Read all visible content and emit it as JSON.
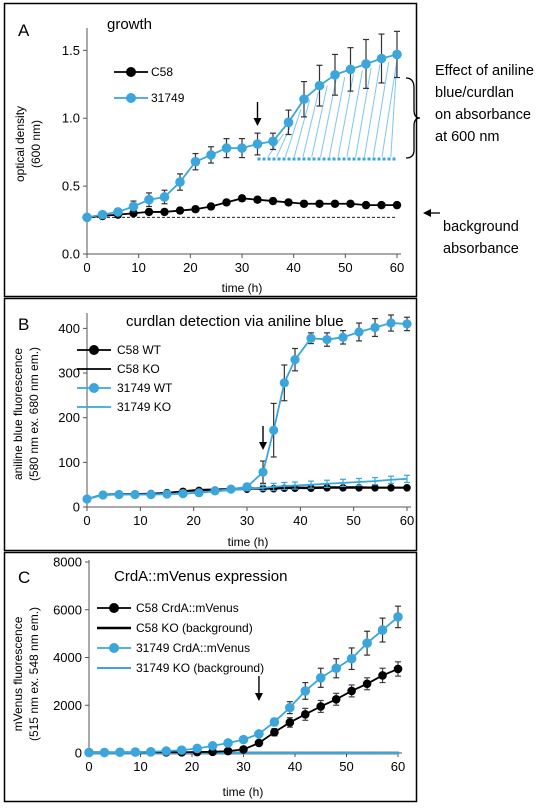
{
  "colors": {
    "c58": "#000000",
    "strain31749": "#3aa6dc",
    "hatch": "#7fc6ec",
    "frame": "#000000"
  },
  "chart_data": [
    {
      "type": "line",
      "panel_label": "A",
      "title": "growth",
      "xlabel": "time (h)",
      "ylabel": "optical density",
      "ylabel_sub": "(600 nm)",
      "xlim": [
        0,
        60
      ],
      "ylim": [
        0,
        1.65
      ],
      "x_ticks": [
        "0",
        "10",
        "20",
        "30",
        "40",
        "50",
        "60"
      ],
      "y_ticks": [
        "0.0",
        "0.5",
        "1.0",
        "1.5"
      ],
      "y_tick_values": [
        0,
        0.5,
        1.0,
        1.5
      ],
      "x": [
        0,
        3,
        6,
        9,
        12,
        15,
        18,
        21,
        24,
        27,
        30,
        33,
        36,
        39,
        42,
        45,
        48,
        51,
        54,
        57,
        60
      ],
      "series": [
        {
          "name": "C58",
          "values": [
            0.27,
            0.28,
            0.29,
            0.3,
            0.31,
            0.31,
            0.32,
            0.33,
            0.35,
            0.38,
            0.41,
            0.4,
            0.39,
            0.38,
            0.37,
            0.37,
            0.37,
            0.37,
            0.36,
            0.36,
            0.36
          ],
          "errors": [
            0.01,
            0.01,
            0.01,
            0.01,
            0.02,
            0.02,
            0.02,
            0.02,
            0.02,
            0.02,
            0.02,
            0.02,
            0.02,
            0.02,
            0.02,
            0.01,
            0.01,
            0.01,
            0.01,
            0.01,
            0.01
          ]
        },
        {
          "name": "31749",
          "values": [
            0.27,
            0.29,
            0.31,
            0.35,
            0.4,
            0.42,
            0.53,
            0.68,
            0.73,
            0.78,
            0.78,
            0.81,
            0.83,
            0.97,
            1.14,
            1.24,
            1.32,
            1.36,
            1.4,
            1.44,
            1.47
          ],
          "errors": [
            0.01,
            0.02,
            0.02,
            0.04,
            0.05,
            0.05,
            0.06,
            0.06,
            0.06,
            0.07,
            0.07,
            0.08,
            0.06,
            0.09,
            0.13,
            0.15,
            0.15,
            0.16,
            0.18,
            0.18,
            0.17
          ]
        }
      ],
      "background_level": 0.27,
      "hatch_region": {
        "x_start": 33,
        "x_end": 60,
        "baseline": 0.7
      },
      "arrow_x": 33,
      "annotations": {
        "effect_text": [
          "Effect of aniline",
          "blue/curdlan",
          "on absorbance",
          "at 600 nm"
        ],
        "background_text": [
          "background",
          "absorbance"
        ]
      }
    },
    {
      "type": "line",
      "panel_label": "B",
      "title": "curdlan detection via aniline blue",
      "xlabel": "time (h)",
      "ylabel": "aniline blue fluorescence",
      "ylabel_sub": "(580 nm ex. 680 nm em.)",
      "xlim": [
        0,
        60
      ],
      "ylim": [
        0,
        430
      ],
      "x_ticks": [
        "0",
        "10",
        "20",
        "30",
        "40",
        "50",
        "60"
      ],
      "y_ticks": [
        "0",
        "100",
        "200",
        "300",
        "400"
      ],
      "y_tick_values": [
        0,
        100,
        200,
        300,
        400
      ],
      "x": [
        0,
        3,
        6,
        9,
        12,
        15,
        18,
        21,
        24,
        27,
        30,
        33,
        35,
        37,
        39,
        42,
        45,
        48,
        51,
        54,
        57,
        60
      ],
      "series": [
        {
          "name": "C58 WT",
          "values": [
            18,
            28,
            29,
            29,
            30,
            32,
            35,
            37,
            38,
            39,
            40,
            41,
            41,
            42,
            42,
            42,
            43,
            43,
            43,
            43,
            43,
            43
          ],
          "errors": [
            3,
            3,
            3,
            3,
            3,
            4,
            4,
            4,
            4,
            4,
            4,
            4,
            4,
            4,
            4,
            4,
            4,
            4,
            4,
            4,
            4,
            4
          ]
        },
        {
          "name": "C58 KO",
          "values": [
            18,
            27,
            28,
            28,
            29,
            31,
            36,
            39,
            40,
            41,
            42,
            43,
            43,
            44,
            44,
            44,
            45,
            45,
            45,
            44,
            44,
            44
          ],
          "errors": []
        },
        {
          "name": "31749 WT",
          "values": [
            18,
            27,
            28,
            28,
            28,
            29,
            30,
            32,
            36,
            40,
            45,
            78,
            172,
            278,
            330,
            378,
            375,
            380,
            392,
            402,
            412,
            410
          ],
          "errors": [
            4,
            4,
            4,
            4,
            4,
            4,
            5,
            5,
            6,
            6,
            7,
            25,
            60,
            40,
            25,
            12,
            15,
            15,
            20,
            20,
            18,
            15
          ]
        },
        {
          "name": "31749 KO",
          "values": [
            18,
            27,
            28,
            28,
            28,
            29,
            30,
            32,
            35,
            38,
            40,
            43,
            45,
            47,
            48,
            50,
            52,
            54,
            56,
            58,
            61,
            63
          ],
          "errors": [
            3,
            3,
            3,
            3,
            3,
            3,
            3,
            3,
            3,
            4,
            4,
            6,
            8,
            8,
            8,
            8,
            8,
            8,
            8,
            8,
            8,
            8
          ]
        }
      ],
      "arrow_x": 33
    },
    {
      "type": "line",
      "panel_label": "C",
      "title": "CrdA::mVenus expression",
      "xlabel": "time (h)",
      "ylabel": "mVenus fluorescence",
      "ylabel_sub": "(515 nm ex. 548 nm em.)",
      "xlim": [
        0,
        60
      ],
      "ylim": [
        0,
        8000
      ],
      "x_ticks": [
        "0",
        "10",
        "20",
        "30",
        "40",
        "50",
        "60"
      ],
      "y_ticks": [
        "0",
        "2000",
        "4000",
        "6000",
        "8000"
      ],
      "y_tick_values": [
        0,
        2000,
        4000,
        6000,
        8000
      ],
      "x": [
        0,
        3,
        6,
        9,
        12,
        15,
        18,
        21,
        24,
        27,
        30,
        33,
        36,
        39,
        42,
        45,
        48,
        51,
        54,
        57,
        60
      ],
      "series": [
        {
          "name": "C58 CrdA::mVenus",
          "values": [
            30,
            30,
            30,
            30,
            30,
            30,
            30,
            40,
            50,
            80,
            150,
            420,
            870,
            1280,
            1620,
            1950,
            2250,
            2600,
            2900,
            3250,
            3520
          ],
          "errors": [
            10,
            10,
            10,
            10,
            10,
            10,
            10,
            10,
            15,
            20,
            30,
            80,
            150,
            200,
            250,
            250,
            250,
            250,
            250,
            300,
            300
          ]
        },
        {
          "name": "C58 KO (background)",
          "values": [
            0,
            0,
            0,
            0,
            0,
            0,
            0,
            0,
            0,
            0,
            0,
            0,
            0,
            0,
            0,
            0,
            0,
            0,
            0,
            0,
            0
          ],
          "errors": []
        },
        {
          "name": "31749 CrdA::mVenus",
          "values": [
            20,
            20,
            30,
            40,
            50,
            80,
            120,
            190,
            300,
            420,
            560,
            800,
            1300,
            1900,
            2600,
            3150,
            3550,
            3950,
            4600,
            5150,
            5700
          ],
          "errors": [
            10,
            10,
            10,
            10,
            15,
            20,
            25,
            30,
            40,
            50,
            60,
            80,
            150,
            250,
            350,
            400,
            400,
            450,
            500,
            500,
            450
          ]
        },
        {
          "name": "31749 KO (background)",
          "values": [
            0,
            0,
            0,
            0,
            0,
            0,
            0,
            0,
            0,
            0,
            0,
            0,
            0,
            0,
            0,
            0,
            0,
            0,
            0,
            0,
            0
          ],
          "errors": []
        }
      ],
      "arrow_x": 33
    }
  ]
}
